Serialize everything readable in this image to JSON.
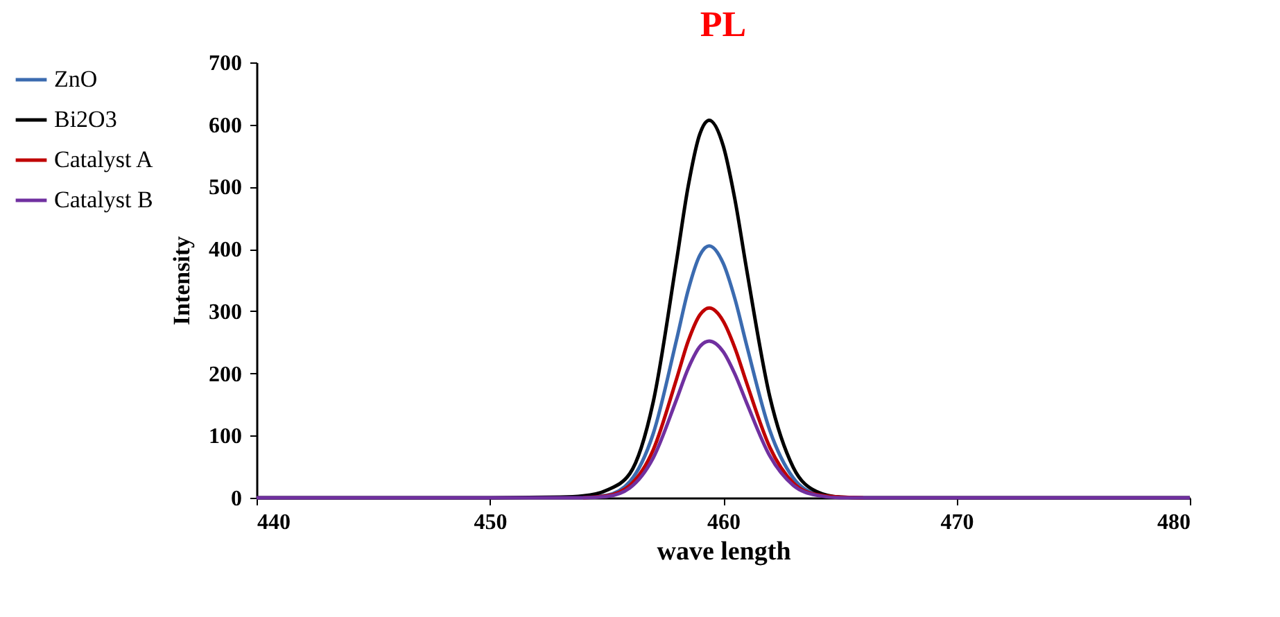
{
  "chart_data": {
    "type": "line",
    "title": "PL",
    "xlabel": "wave length",
    "ylabel": "Intensity",
    "x": [
      440,
      450,
      453,
      454,
      455,
      456,
      457,
      458,
      458.5,
      459,
      459.4,
      460,
      460.5,
      461,
      462,
      463,
      464,
      465,
      466,
      470,
      480
    ],
    "series": [
      {
        "name": "ZnO",
        "color": "#3b6bb0",
        "values": [
          null,
          null,
          null,
          1,
          4,
          26,
          103,
          254,
          334,
          390,
          405,
          377,
          320,
          246,
          108,
          32,
          6,
          1,
          null,
          null,
          null
        ]
      },
      {
        "name": "Bi2O3",
        "color": "#000000",
        "values": [
          0,
          0,
          1,
          3,
          12,
          39,
          154,
          381,
          501,
          585,
          607,
          566,
          480,
          368,
          162,
          49,
          10,
          1,
          0,
          0,
          0
        ]
      },
      {
        "name": "Catalyst A",
        "color": "#c00000",
        "values": [
          null,
          null,
          null,
          0,
          3,
          20,
          77,
          191,
          252,
          294,
          305,
          284,
          241,
          185,
          81,
          24,
          5,
          1,
          0,
          null,
          null
        ]
      },
      {
        "name": "Catalyst B",
        "color": "#7030a0",
        "values": [
          0,
          0,
          0,
          0,
          2,
          16,
          64,
          158,
          208,
          243,
          252,
          235,
          199,
          153,
          67,
          20,
          4,
          0,
          0,
          0,
          0
        ]
      }
    ],
    "xlim": [
      440,
      480
    ],
    "xticks": [
      440,
      450,
      460,
      470,
      480
    ],
    "ylim": [
      0,
      700
    ],
    "yticks": [
      0,
      100,
      200,
      300,
      400,
      500,
      600,
      700
    ],
    "grid": false,
    "legend": "top left",
    "marker": "none",
    "line_style": "solid"
  }
}
